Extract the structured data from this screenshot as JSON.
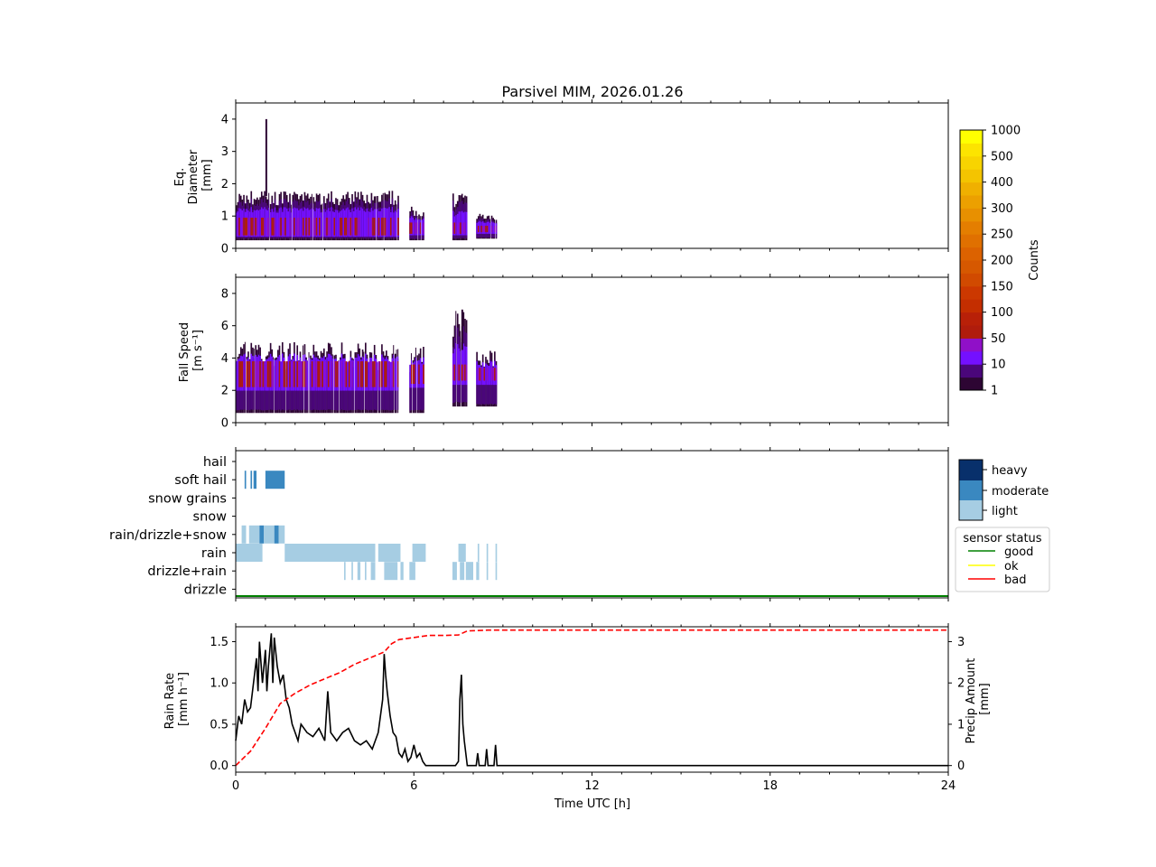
{
  "title": "Parsivel MIM, 2026.01.26",
  "colors": {
    "line": "#000000",
    "cumulative": "#ff0000",
    "good": "#008000",
    "ok": "#ffff00",
    "bad": "#ff0000",
    "light": "#a6cde3",
    "moderate": "#3a88c0",
    "heavy": "#08306b"
  },
  "chart_data": [
    {
      "id": "diameter",
      "type": "heatmap",
      "ylabel_lines": [
        "Eq.",
        "Diameter",
        "[mm]"
      ],
      "xlim": [
        0,
        24
      ],
      "ylim": [
        0,
        4.5
      ],
      "yticks": [
        "0",
        "1",
        "2",
        "3",
        "4"
      ],
      "ytick_values": [
        0,
        1,
        2,
        3,
        4
      ],
      "segments": [
        {
          "start": 0.0,
          "end": 5.5,
          "low": 0.25,
          "high": 1.8,
          "core_low": 0.4,
          "core_high": 0.95
        },
        {
          "start": 5.85,
          "end": 6.35,
          "low": 0.25,
          "high": 1.3,
          "core_low": 0.45,
          "core_high": 0.8
        },
        {
          "start": 7.3,
          "end": 7.8,
          "low": 0.25,
          "high": 1.7,
          "core_low": 0.45,
          "core_high": 0.8
        },
        {
          "start": 8.1,
          "end": 8.8,
          "low": 0.3,
          "high": 1.1,
          "core_low": 0.5,
          "core_high": 0.7
        }
      ],
      "peak": {
        "time": 1.0,
        "value": 4.0
      }
    },
    {
      "id": "fallspeed",
      "type": "heatmap",
      "ylabel_lines": [
        "Fall Speed",
        "[m s⁻¹]"
      ],
      "xlim": [
        0,
        24
      ],
      "ylim": [
        0,
        9
      ],
      "yticks": [
        "0",
        "2",
        "4",
        "6",
        "8"
      ],
      "ytick_values": [
        0,
        2,
        4,
        6,
        8
      ],
      "segments": [
        {
          "start": 0.0,
          "end": 5.5,
          "low": 0.6,
          "high": 5.0,
          "core_low": 2.2,
          "core_high": 3.8
        },
        {
          "start": 5.85,
          "end": 6.35,
          "low": 0.6,
          "high": 4.8,
          "core_low": 2.4,
          "core_high": 3.6
        },
        {
          "start": 7.3,
          "end": 7.8,
          "low": 1.0,
          "high": 7.0,
          "core_low": 2.6,
          "core_high": 3.6
        },
        {
          "start": 8.1,
          "end": 8.8,
          "low": 1.0,
          "high": 4.5,
          "core_low": 2.6,
          "core_high": 3.4
        }
      ],
      "peak": {
        "time": 7.6,
        "value": 7.0
      }
    },
    {
      "id": "precip_type",
      "type": "heatmap",
      "categories": [
        "hail",
        "soft hail",
        "snow grains",
        "snow",
        "rain/drizzle+snow",
        "rain",
        "drizzle+rain",
        "drizzle"
      ],
      "xlim": [
        0,
        24
      ],
      "intensity_legend": [
        "heavy",
        "moderate",
        "light"
      ],
      "events": [
        {
          "category": "soft hail",
          "start": 0.3,
          "end": 0.35,
          "intensity": "moderate"
        },
        {
          "category": "soft hail",
          "start": 0.5,
          "end": 0.55,
          "intensity": "moderate"
        },
        {
          "category": "soft hail",
          "start": 0.6,
          "end": 0.7,
          "intensity": "moderate"
        },
        {
          "category": "soft hail",
          "start": 1.0,
          "end": 1.65,
          "intensity": "moderate"
        },
        {
          "category": "rain/drizzle+snow",
          "start": 0.2,
          "end": 0.35,
          "intensity": "light"
        },
        {
          "category": "rain/drizzle+snow",
          "start": 0.45,
          "end": 0.8,
          "intensity": "light"
        },
        {
          "category": "rain/drizzle+snow",
          "start": 0.8,
          "end": 0.95,
          "intensity": "moderate"
        },
        {
          "category": "rain/drizzle+snow",
          "start": 0.95,
          "end": 1.3,
          "intensity": "light"
        },
        {
          "category": "rain/drizzle+snow",
          "start": 1.3,
          "end": 1.45,
          "intensity": "moderate"
        },
        {
          "category": "rain/drizzle+snow",
          "start": 1.45,
          "end": 1.65,
          "intensity": "light"
        },
        {
          "category": "rain",
          "start": 0.0,
          "end": 0.9,
          "intensity": "light"
        },
        {
          "category": "rain",
          "start": 1.65,
          "end": 4.7,
          "intensity": "light"
        },
        {
          "category": "rain",
          "start": 4.8,
          "end": 5.55,
          "intensity": "light"
        },
        {
          "category": "rain",
          "start": 5.95,
          "end": 6.4,
          "intensity": "light"
        },
        {
          "category": "rain",
          "start": 7.5,
          "end": 7.75,
          "intensity": "light"
        },
        {
          "category": "rain",
          "start": 8.15,
          "end": 8.2,
          "intensity": "light"
        },
        {
          "category": "rain",
          "start": 8.45,
          "end": 8.5,
          "intensity": "light"
        },
        {
          "category": "rain",
          "start": 8.75,
          "end": 8.8,
          "intensity": "light"
        },
        {
          "category": "drizzle+rain",
          "start": 3.65,
          "end": 3.7,
          "intensity": "light"
        },
        {
          "category": "drizzle+rain",
          "start": 3.9,
          "end": 3.95,
          "intensity": "light"
        },
        {
          "category": "drizzle+rain",
          "start": 4.1,
          "end": 4.2,
          "intensity": "light"
        },
        {
          "category": "drizzle+rain",
          "start": 4.35,
          "end": 4.4,
          "intensity": "light"
        },
        {
          "category": "drizzle+rain",
          "start": 4.55,
          "end": 4.7,
          "intensity": "light"
        },
        {
          "category": "drizzle+rain",
          "start": 5.0,
          "end": 5.45,
          "intensity": "light"
        },
        {
          "category": "drizzle+rain",
          "start": 5.55,
          "end": 5.65,
          "intensity": "light"
        },
        {
          "category": "drizzle+rain",
          "start": 5.85,
          "end": 6.05,
          "intensity": "light"
        },
        {
          "category": "drizzle+rain",
          "start": 7.3,
          "end": 7.45,
          "intensity": "light"
        },
        {
          "category": "drizzle+rain",
          "start": 7.55,
          "end": 7.7,
          "intensity": "light"
        },
        {
          "category": "drizzle+rain",
          "start": 7.75,
          "end": 8.0,
          "intensity": "light"
        },
        {
          "category": "drizzle+rain",
          "start": 8.1,
          "end": 8.2,
          "intensity": "light"
        },
        {
          "category": "drizzle+rain",
          "start": 8.45,
          "end": 8.5,
          "intensity": "light"
        },
        {
          "category": "drizzle+rain",
          "start": 8.75,
          "end": 8.8,
          "intensity": "light"
        }
      ],
      "sensor_status": {
        "legend_title": "sensor status",
        "entries": [
          "good",
          "ok",
          "bad"
        ],
        "timeline": [
          {
            "start": 0,
            "end": 24,
            "status": "good"
          }
        ]
      }
    },
    {
      "id": "rain",
      "type": "line",
      "xlabel": "Time UTC [h]",
      "xticks": [
        "0",
        "6",
        "12",
        "18",
        "24"
      ],
      "xtick_values": [
        0,
        6,
        12,
        18,
        24
      ],
      "xlim": [
        0,
        24
      ],
      "ylabel_lines": [
        "Rain Rate",
        "[mm h⁻¹]"
      ],
      "ylim": [
        -0.08,
        1.68
      ],
      "yticks": [
        "0.0",
        "0.5",
        "1.0",
        "1.5"
      ],
      "ytick_values": [
        0.0,
        0.5,
        1.0,
        1.5
      ],
      "y2label_lines": [
        "Precip Amount",
        "[mm]"
      ],
      "y2lim": [
        -0.16,
        3.36
      ],
      "y2ticks": [
        "0",
        "1",
        "2",
        "3"
      ],
      "y2tick_values": [
        0,
        1,
        2,
        3
      ],
      "series": [
        {
          "name": "rain rate",
          "x": [
            0,
            0.1,
            0.2,
            0.3,
            0.4,
            0.5,
            0.6,
            0.7,
            0.75,
            0.8,
            0.9,
            1.0,
            1.05,
            1.1,
            1.2,
            1.25,
            1.3,
            1.4,
            1.5,
            1.6,
            1.7,
            1.8,
            1.9,
            2.0,
            2.1,
            2.2,
            2.4,
            2.6,
            2.8,
            3.0,
            3.1,
            3.2,
            3.4,
            3.6,
            3.8,
            4.0,
            4.2,
            4.4,
            4.6,
            4.8,
            4.95,
            5.0,
            5.05,
            5.1,
            5.2,
            5.3,
            5.4,
            5.5,
            5.6,
            5.7,
            5.8,
            5.9,
            6.0,
            6.1,
            6.2,
            6.3,
            6.4,
            6.5,
            7.0,
            7.4,
            7.5,
            7.55,
            7.6,
            7.65,
            7.7,
            7.8,
            7.9,
            8.0,
            8.1,
            8.15,
            8.2,
            8.3,
            8.4,
            8.45,
            8.5,
            8.6,
            8.7,
            8.75,
            8.8,
            8.9,
            9.0,
            24
          ],
          "values": [
            0.3,
            0.6,
            0.5,
            0.8,
            0.65,
            0.7,
            1.0,
            1.3,
            0.9,
            1.5,
            1.0,
            1.4,
            0.9,
            1.2,
            1.6,
            1.0,
            1.55,
            1.2,
            1.0,
            1.1,
            0.8,
            0.7,
            0.5,
            0.4,
            0.3,
            0.5,
            0.4,
            0.35,
            0.45,
            0.3,
            0.9,
            0.4,
            0.3,
            0.4,
            0.45,
            0.3,
            0.25,
            0.3,
            0.2,
            0.4,
            0.8,
            1.35,
            1.1,
            0.9,
            0.6,
            0.4,
            0.35,
            0.15,
            0.1,
            0.2,
            0.05,
            0.1,
            0.25,
            0.1,
            0.15,
            0.05,
            0.0,
            0.0,
            0.0,
            0.0,
            0.05,
            0.8,
            1.1,
            0.5,
            0.3,
            0.0,
            0.0,
            0.0,
            0.0,
            0.15,
            0.0,
            0.0,
            0.0,
            0.2,
            0.0,
            0.0,
            0.0,
            0.25,
            0.0,
            0.0,
            0.0,
            0.0
          ]
        },
        {
          "name": "precip amount",
          "axis": "right",
          "x": [
            0,
            0.5,
            1.0,
            1.5,
            2.0,
            2.5,
            3.0,
            3.5,
            4.0,
            4.5,
            5.0,
            5.25,
            5.5,
            6.0,
            6.5,
            7.0,
            7.5,
            7.8,
            8.5,
            9.0,
            24
          ],
          "values": [
            0.0,
            0.35,
            0.9,
            1.5,
            1.75,
            1.95,
            2.1,
            2.25,
            2.45,
            2.6,
            2.75,
            2.95,
            3.05,
            3.1,
            3.15,
            3.15,
            3.16,
            3.26,
            3.28,
            3.28,
            3.28
          ]
        }
      ]
    }
  ],
  "colorbar": {
    "label": "Counts",
    "ticks": [
      "1",
      "10",
      "50",
      "100",
      "150",
      "200",
      "250",
      "300",
      "400",
      "500",
      "1000"
    ],
    "colors": [
      "#2d0533",
      "#4a067a",
      "#7410ff",
      "#9010c8",
      "#b01c0c",
      "#b82008",
      "#c42e00",
      "#cc3800",
      "#d14a00",
      "#d65800",
      "#dc6200",
      "#e07000",
      "#e47e00",
      "#e89000",
      "#eca000",
      "#f0b000",
      "#f4c400",
      "#f8d400",
      "#fce400",
      "#ffff00"
    ]
  }
}
